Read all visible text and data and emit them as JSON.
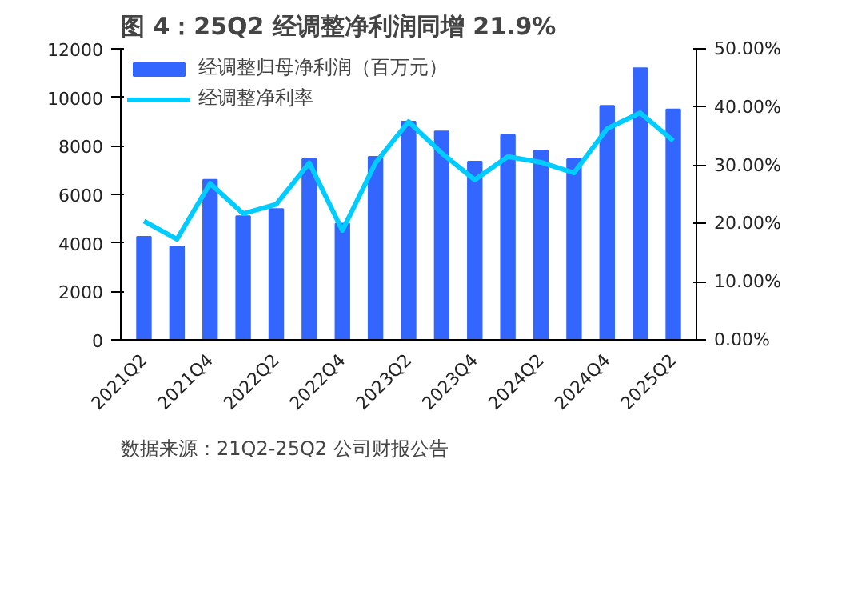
{
  "chart_data": {
    "type": "bar",
    "title": "图 4：25Q2 经调整净利润同增 21.9%",
    "categories": [
      "2021Q2",
      null,
      "2021Q4",
      null,
      "2022Q2",
      null,
      "2022Q4",
      null,
      "2023Q2",
      null,
      "2023Q4",
      null,
      "2024Q2",
      null,
      "2024Q4",
      null,
      "2025Q2"
    ],
    "series": [
      {
        "name": "经调整归母净利润（百万元）",
        "color": "#3366ff",
        "values": [
          4250,
          3850,
          6600,
          5100,
          5400,
          7450,
          4800,
          7550,
          9000,
          8600,
          7350,
          8450,
          7800,
          7450,
          9650,
          11200,
          9500
        ]
      },
      {
        "name": "经调整净利率",
        "color": "#00ccff",
        "type": "line",
        "axis": "y2",
        "values": [
          20.4,
          17.3,
          26.9,
          21.7,
          23.3,
          30.4,
          18.8,
          30.4,
          37.5,
          32.1,
          27.5,
          31.5,
          30.5,
          28.7,
          36.3,
          39.0,
          34.2
        ]
      }
    ],
    "ylim": [
      0,
      12000
    ],
    "yticks": [
      0,
      2000,
      4000,
      6000,
      8000,
      10000,
      12000
    ],
    "y2lim": [
      0,
      50
    ],
    "y2ticks": [
      {
        "value": 0,
        "label": "0.00%"
      },
      {
        "value": 10,
        "label": "10.00%"
      },
      {
        "value": 20,
        "label": "20.00%"
      },
      {
        "value": 30,
        "label": "30.00%"
      },
      {
        "value": 40,
        "label": "40.00%"
      },
      {
        "value": 50,
        "label": "50.00%"
      }
    ],
    "grid": false,
    "legend": "top",
    "annotations": [
      "数据来源：21Q2-25Q2 公司财报公告"
    ]
  }
}
